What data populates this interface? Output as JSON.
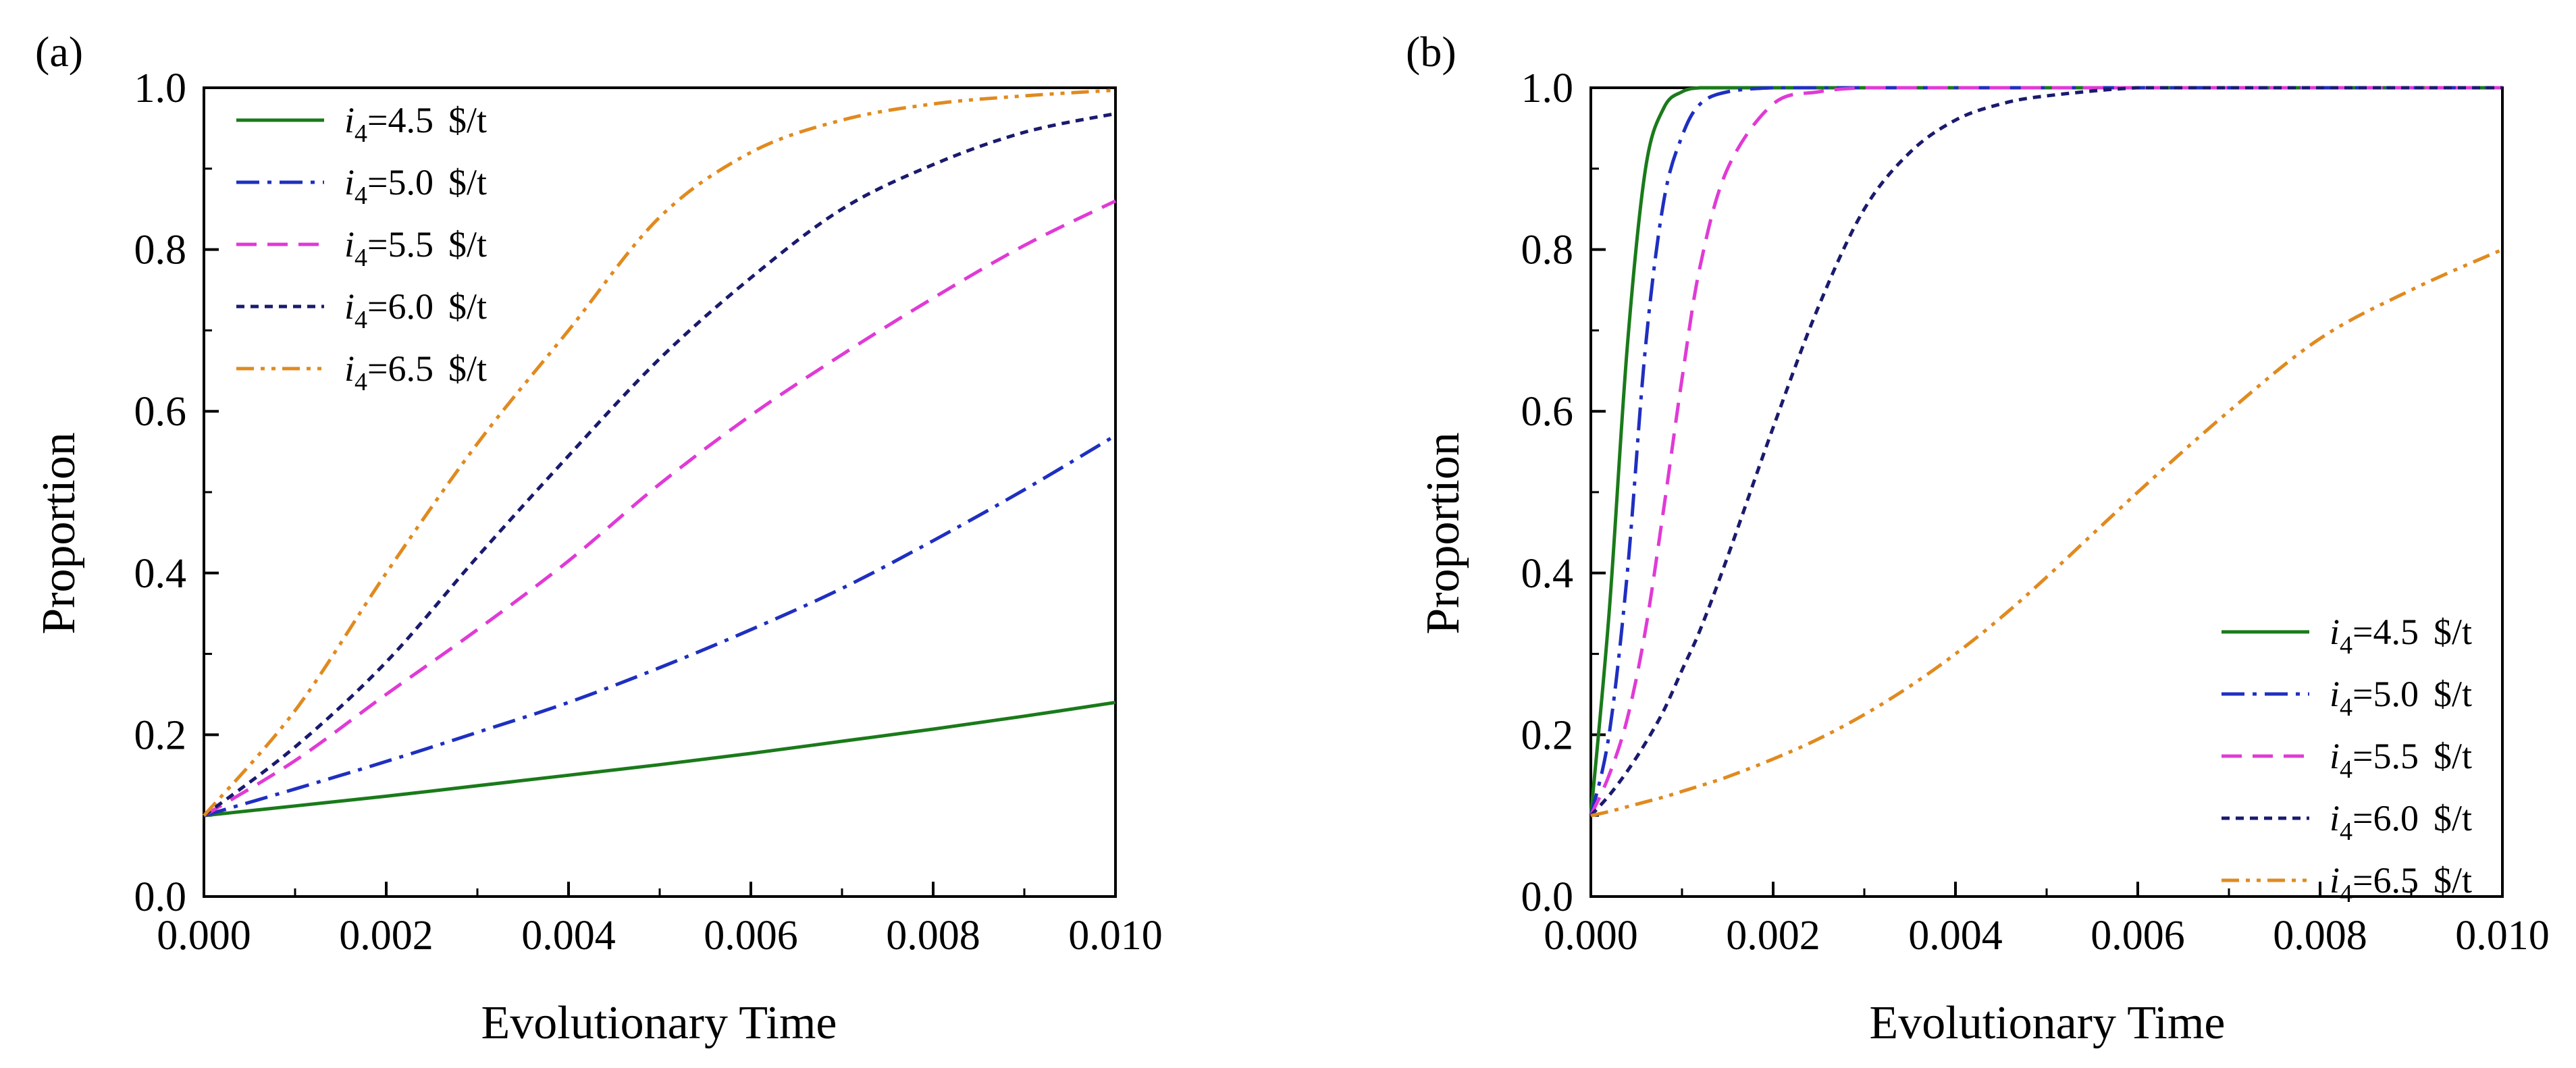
{
  "chart_data": [
    {
      "type": "line",
      "panel_label": "(a)",
      "xlabel": "Evolutionary Time",
      "ylabel": "Proportion",
      "xlim": [
        0.0,
        0.01
      ],
      "ylim": [
        0.0,
        1.0
      ],
      "xticks": [
        "0.000",
        "0.002",
        "0.004",
        "0.006",
        "0.008",
        "0.010"
      ],
      "yticks": [
        "0.0",
        "0.2",
        "0.4",
        "0.6",
        "0.8",
        "1.0"
      ],
      "grid": false,
      "legend_position": "top-left",
      "x": [
        0.0,
        0.001,
        0.002,
        0.003,
        0.004,
        0.005,
        0.006,
        0.007,
        0.008,
        0.009,
        0.01
      ],
      "series": [
        {
          "name": "4.5",
          "legend_var": "i",
          "legend_sub": "4",
          "legend_eq": "=4.5",
          "legend_unit": "$/t",
          "color": "#1a7a1a",
          "dash": "solid",
          "values": [
            0.1,
            0.112,
            0.124,
            0.137,
            0.15,
            0.163,
            0.177,
            0.192,
            0.207,
            0.223,
            0.24
          ]
        },
        {
          "name": "5.0",
          "legend_var": "i",
          "legend_sub": "4",
          "legend_eq": "=5.0",
          "legend_unit": "$/t",
          "color": "#1f2fc0",
          "dash": "dashdot",
          "values": [
            0.1,
            0.133,
            0.167,
            0.203,
            0.24,
            0.283,
            0.33,
            0.381,
            0.44,
            0.503,
            0.57
          ]
        },
        {
          "name": "5.5",
          "legend_var": "i",
          "legend_sub": "4",
          "legend_eq": "=5.5",
          "legend_unit": "$/t",
          "color": "#e03ad6",
          "dash": "dash",
          "values": [
            0.1,
            0.168,
            0.25,
            0.33,
            0.415,
            0.51,
            0.595,
            0.67,
            0.74,
            0.805,
            0.86
          ]
        },
        {
          "name": "6.0",
          "legend_var": "i",
          "legend_sub": "4",
          "legend_eq": "=6.0",
          "legend_unit": "$/t",
          "color": "#1a1a6e",
          "dash": "shortdash",
          "values": [
            0.1,
            0.185,
            0.29,
            0.42,
            0.545,
            0.665,
            0.765,
            0.85,
            0.905,
            0.945,
            0.968
          ]
        },
        {
          "name": "6.5",
          "legend_var": "i",
          "legend_sub": "4",
          "legend_eq": "=6.5",
          "legend_unit": "$/t",
          "color": "#e08a1f",
          "dash": "dashdotdot",
          "values": [
            0.1,
            0.23,
            0.4,
            0.56,
            0.7,
            0.84,
            0.92,
            0.96,
            0.98,
            0.99,
            0.997
          ]
        }
      ]
    },
    {
      "type": "line",
      "panel_label": "(b)",
      "xlabel": "Evolutionary Time",
      "ylabel": "Proportion",
      "xlim": [
        0.0,
        0.01
      ],
      "ylim": [
        0.0,
        1.0
      ],
      "xticks": [
        "0.000",
        "0.002",
        "0.004",
        "0.006",
        "0.008",
        "0.010"
      ],
      "yticks": [
        "0.0",
        "0.2",
        "0.4",
        "0.6",
        "0.8",
        "1.0"
      ],
      "grid": false,
      "legend_position": "bottom-right",
      "x": [
        0.0,
        0.0002,
        0.0004,
        0.0006,
        0.0008,
        0.001,
        0.0012,
        0.0015,
        0.002,
        0.0025,
        0.003,
        0.0035,
        0.004,
        0.0045,
        0.005,
        0.006,
        0.007,
        0.008,
        0.009,
        0.01
      ],
      "series": [
        {
          "name": "4.5",
          "legend_var": "i",
          "legend_sub": "4",
          "legend_eq": "=4.5",
          "legend_unit": "$/t",
          "color": "#1a7a1a",
          "dash": "solid",
          "values": [
            0.1,
            0.35,
            0.68,
            0.9,
            0.975,
            0.995,
            1.0,
            1.0,
            1.0,
            1.0,
            1.0,
            1.0,
            1.0,
            1.0,
            1.0,
            1.0,
            1.0,
            1.0,
            1.0,
            1.0
          ]
        },
        {
          "name": "5.0",
          "legend_var": "i",
          "legend_sub": "4",
          "legend_eq": "=5.0",
          "legend_unit": "$/t",
          "color": "#1f2fc0",
          "dash": "dashdot",
          "values": [
            0.1,
            0.2,
            0.4,
            0.68,
            0.86,
            0.94,
            0.98,
            0.995,
            1.0,
            1.0,
            1.0,
            1.0,
            1.0,
            1.0,
            1.0,
            1.0,
            1.0,
            1.0,
            1.0,
            1.0
          ]
        },
        {
          "name": "5.5",
          "legend_var": "i",
          "legend_sub": "4",
          "legend_eq": "=5.5",
          "legend_unit": "$/t",
          "color": "#e03ad6",
          "dash": "dash",
          "values": [
            0.1,
            0.15,
            0.22,
            0.33,
            0.48,
            0.64,
            0.78,
            0.9,
            0.98,
            0.995,
            1.0,
            1.0,
            1.0,
            1.0,
            1.0,
            1.0,
            1.0,
            1.0,
            1.0,
            1.0
          ]
        },
        {
          "name": "6.0",
          "legend_var": "i",
          "legend_sub": "4",
          "legend_eq": "=6.0",
          "legend_unit": "$/t",
          "color": "#1a1a6e",
          "dash": "shortdash",
          "values": [
            0.1,
            0.125,
            0.155,
            0.19,
            0.23,
            0.28,
            0.33,
            0.42,
            0.58,
            0.73,
            0.85,
            0.92,
            0.96,
            0.98,
            0.99,
            1.0,
            1.0,
            1.0,
            1.0,
            1.0
          ]
        },
        {
          "name": "6.5",
          "legend_var": "i",
          "legend_sub": "4",
          "legend_eq": "=6.5",
          "legend_unit": "$/t",
          "color": "#e08a1f",
          "dash": "dashdotdot",
          "values": [
            0.1,
            0.105,
            0.111,
            0.117,
            0.123,
            0.13,
            0.137,
            0.148,
            0.17,
            0.195,
            0.225,
            0.26,
            0.3,
            0.345,
            0.395,
            0.5,
            0.6,
            0.69,
            0.75,
            0.8
          ]
        }
      ]
    }
  ]
}
